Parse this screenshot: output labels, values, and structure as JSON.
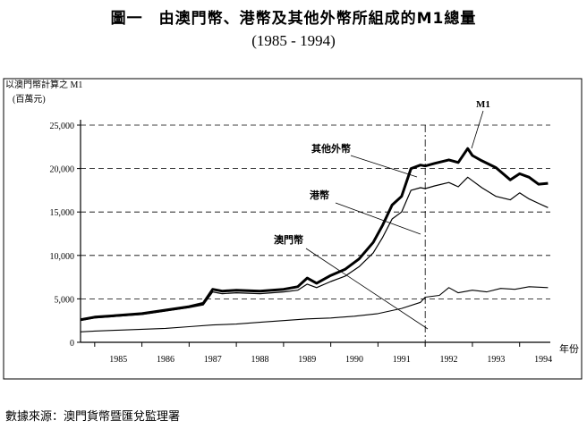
{
  "title": "圖一　由澳門幣、港幣及其他外幣所組成的M1總量",
  "subtitle": "(1985 - 1994)",
  "source": "數據來源：澳門貨幣暨匯兌監理署",
  "chart_data": {
    "type": "line",
    "ylabel": "以澳門幣計算之 M1",
    "yunit": "(百萬元)",
    "xlabel": "年份",
    "ylim": [
      0,
      25000
    ],
    "xlim": [
      1984.7,
      1994.65
    ],
    "yticks": [
      "0",
      "5,000",
      "10,000",
      "15,000",
      "20,000",
      "25,000"
    ],
    "ytick_values": [
      0,
      5000,
      10000,
      15000,
      20000,
      25000
    ],
    "categories": [
      "1985",
      "1986",
      "1987",
      "1988",
      "1989",
      "1990",
      "1991",
      "1992",
      "1993",
      "1994"
    ],
    "grid": "dashed horizontal",
    "series": [
      {
        "name": "M1",
        "x": [
          1984.7,
          1985.0,
          1985.5,
          1986.0,
          1986.5,
          1987.0,
          1987.3,
          1987.5,
          1987.7,
          1988.0,
          1988.5,
          1989.0,
          1989.3,
          1989.5,
          1989.7,
          1990.0,
          1990.3,
          1990.6,
          1990.9,
          1991.1,
          1991.3,
          1991.5,
          1991.7,
          1991.9,
          1992.0,
          1992.2,
          1992.5,
          1992.7,
          1992.9,
          1993.0,
          1993.2,
          1993.5,
          1993.8,
          1994.0,
          1994.2,
          1994.4,
          1994.6
        ],
        "values": [
          2600,
          2900,
          3100,
          3300,
          3700,
          4100,
          4500,
          6100,
          5900,
          6000,
          5900,
          6100,
          6400,
          7400,
          6800,
          7700,
          8400,
          9600,
          11500,
          13500,
          15800,
          16800,
          20000,
          20400,
          20300,
          20600,
          21000,
          20700,
          22300,
          21500,
          20900,
          20100,
          18700,
          19400,
          19000,
          18200,
          18300
        ]
      },
      {
        "name": "港幣",
        "x": [
          1984.7,
          1985.0,
          1985.5,
          1986.0,
          1986.5,
          1987.0,
          1987.3,
          1987.5,
          1987.7,
          1988.0,
          1988.5,
          1989.0,
          1989.3,
          1989.5,
          1989.7,
          1990.0,
          1990.3,
          1990.6,
          1990.9,
          1991.1,
          1991.3,
          1991.5,
          1991.7,
          1991.9,
          1992.0,
          1992.2,
          1992.5,
          1992.7,
          1992.9,
          1993.0,
          1993.2,
          1993.5,
          1993.8,
          1994.0,
          1994.2,
          1994.4,
          1994.6
        ],
        "values": [
          2500,
          2800,
          3000,
          3200,
          3600,
          4000,
          4300,
          5800,
          5600,
          5700,
          5600,
          5800,
          6000,
          6700,
          6300,
          7000,
          7600,
          8700,
          10300,
          12100,
          14200,
          15000,
          17500,
          17800,
          17700,
          18000,
          18400,
          17900,
          19000,
          18600,
          17800,
          16800,
          16400,
          17200,
          16500,
          16000,
          15500
        ]
      },
      {
        "name": "澳門幣",
        "x": [
          1984.7,
          1985.0,
          1985.5,
          1986.0,
          1986.5,
          1987.0,
          1987.5,
          1988.0,
          1988.5,
          1989.0,
          1989.5,
          1990.0,
          1990.5,
          1991.0,
          1991.5,
          1991.9,
          1992.0,
          1992.3,
          1992.5,
          1992.7,
          1993.0,
          1993.3,
          1993.6,
          1993.9,
          1994.2,
          1994.6
        ],
        "values": [
          1200,
          1300,
          1400,
          1500,
          1600,
          1800,
          2000,
          2100,
          2300,
          2500,
          2700,
          2800,
          3000,
          3300,
          3900,
          4600,
          5200,
          5400,
          6300,
          5700,
          6000,
          5800,
          6200,
          6100,
          6400,
          6300
        ]
      }
    ],
    "annotations": [
      {
        "text": "M1",
        "target": "M1"
      },
      {
        "text": "其他外幣",
        "target": "M1-港幣 gap"
      },
      {
        "text": "港幣",
        "target": "港幣"
      },
      {
        "text": "澳門幣",
        "target": "澳門幣"
      }
    ]
  }
}
